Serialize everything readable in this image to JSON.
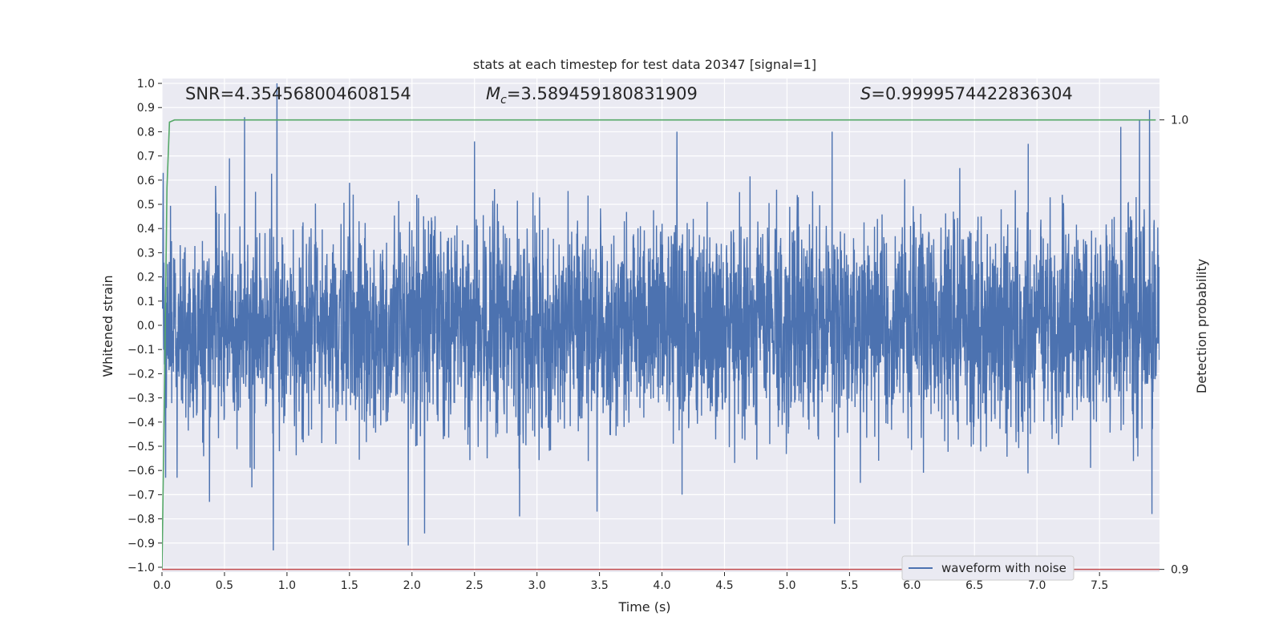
{
  "chart_data": {
    "type": "line",
    "title": "stats at each timestep for test data 20347 [signal=1]",
    "xlabel": "Time (s)",
    "ylabel": "Whitened strain",
    "y2label": "Detection probability",
    "xlim": [
      0.0,
      7.98
    ],
    "ylim": [
      -1.02,
      1.02
    ],
    "y2lim": [
      0.8994,
      1.0092
    ],
    "grid": true,
    "xticks": [
      "0.0",
      "0.5",
      "1.0",
      "1.5",
      "2.0",
      "2.5",
      "3.0",
      "3.5",
      "4.0",
      "4.5",
      "5.0",
      "5.5",
      "6.0",
      "6.5",
      "7.0",
      "7.5"
    ],
    "yticks": [
      "1.0",
      "0.9",
      "0.8",
      "0.7",
      "0.6",
      "0.5",
      "0.4",
      "0.3",
      "0.2",
      "0.1",
      "0.0",
      "−0.1",
      "−0.2",
      "−0.3",
      "−0.4",
      "−0.5",
      "−0.6",
      "−0.7",
      "−0.8",
      "−0.9",
      "−1.0"
    ],
    "y2ticks": [
      "1.0",
      "0.9"
    ],
    "annotations": {
      "snr": "SNR=4.354568004608154",
      "mc_sym": "M",
      "mc_sub": "c",
      "mc_val": "=3.589459180831909",
      "s_sym": "S",
      "s_val": "=0.9999574422836304"
    },
    "legend": {
      "position": "lower-right",
      "entry": "waveform with noise"
    },
    "colors": {
      "waveform": "#4c72b0",
      "probability": "#55a868",
      "threshold": "#c44e52",
      "plot_bg": "#eaeaf2",
      "grid": "#ffffff"
    },
    "series": [
      {
        "name": "waveform with noise",
        "axis": "left",
        "kind": "noise",
        "samples": 4096,
        "amplitude": 0.22,
        "spikes": [
          {
            "x": 0.01,
            "y": 0.63
          },
          {
            "x": 0.03,
            "y": -0.63
          },
          {
            "x": 0.12,
            "y": -0.63
          },
          {
            "x": 0.38,
            "y": -0.73
          },
          {
            "x": 0.54,
            "y": 0.69
          },
          {
            "x": 0.66,
            "y": 0.86
          },
          {
            "x": 0.72,
            "y": -0.67
          },
          {
            "x": 0.89,
            "y": -0.93
          },
          {
            "x": 0.92,
            "y": 1.0
          },
          {
            "x": 1.97,
            "y": -0.91
          },
          {
            "x": 2.1,
            "y": -0.86
          },
          {
            "x": 2.5,
            "y": 0.76
          },
          {
            "x": 2.86,
            "y": -0.79
          },
          {
            "x": 3.48,
            "y": -0.77
          },
          {
            "x": 4.12,
            "y": 0.8
          },
          {
            "x": 4.16,
            "y": -0.7
          },
          {
            "x": 5.36,
            "y": 0.8
          },
          {
            "x": 5.38,
            "y": -0.82
          },
          {
            "x": 6.93,
            "y": 0.75
          },
          {
            "x": 7.67,
            "y": 0.82
          },
          {
            "x": 7.82,
            "y": 0.85
          },
          {
            "x": 7.9,
            "y": 0.89
          },
          {
            "x": 7.92,
            "y": -0.78
          }
        ]
      },
      {
        "name": "detection probability",
        "axis": "right",
        "x": [
          0.0,
          0.02,
          0.04,
          0.06,
          0.1,
          0.5,
          1.0,
          2.0,
          4.0,
          6.0,
          7.95
        ],
        "y": [
          0.8999,
          0.94,
          0.985,
          0.9995,
          0.99998,
          0.99998,
          0.99999,
          0.99999,
          0.99999,
          0.99999,
          0.99999
        ]
      },
      {
        "name": "threshold",
        "axis": "right",
        "x": [
          0.0,
          7.98
        ],
        "y": [
          0.9,
          0.9
        ]
      }
    ]
  }
}
